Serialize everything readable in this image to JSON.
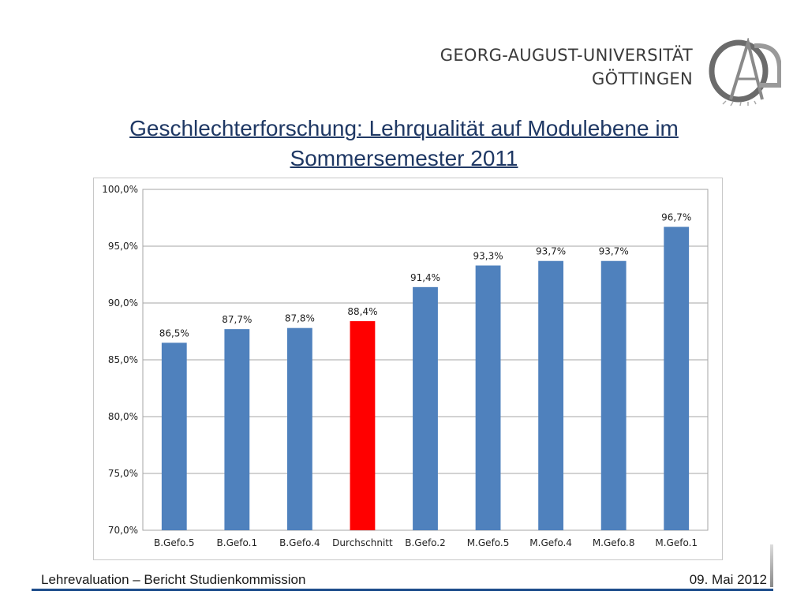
{
  "header": {
    "university_line1": "GEORG-AUGUST-UNIVERSITÄT",
    "university_line2": "GÖTTINGEN",
    "title_line1": "Geschlechterforschung: Lehrqualität auf Modulebene im",
    "title_line2": "Sommersemester 2011"
  },
  "footer": {
    "left": "Lehrevaluation – Bericht Studienkommission",
    "right": "09. Mai 2012"
  },
  "colors": {
    "bar": "#4f81bd",
    "highlight_bar": "#ff0000",
    "title": "#1f3864"
  },
  "chart_data": {
    "type": "bar",
    "title": "",
    "xlabel": "",
    "ylabel": "",
    "categories": [
      "B.Gefo.5",
      "B.Gefo.1",
      "B.Gefo.4",
      "Durchschnitt",
      "B.Gefo.2",
      "M.Gefo.5",
      "M.Gefo.4",
      "M.Gefo.8",
      "M.Gefo.1"
    ],
    "values": [
      86.5,
      87.7,
      87.8,
      88.4,
      91.4,
      93.3,
      93.7,
      93.7,
      96.7
    ],
    "data_labels": [
      "86,5%",
      "87,7%",
      "87,8%",
      "88,4%",
      "91,4%",
      "93,3%",
      "93,7%",
      "93,7%",
      "96,7%"
    ],
    "highlight_category": "Durchschnitt",
    "ylim": [
      70,
      100
    ],
    "yticks": [
      70,
      75,
      80,
      85,
      90,
      95,
      100
    ],
    "ytick_labels": [
      "70,0%",
      "75,0%",
      "80,0%",
      "85,0%",
      "90,0%",
      "95,0%",
      "100,0%"
    ],
    "grid": true,
    "legend": "none"
  }
}
